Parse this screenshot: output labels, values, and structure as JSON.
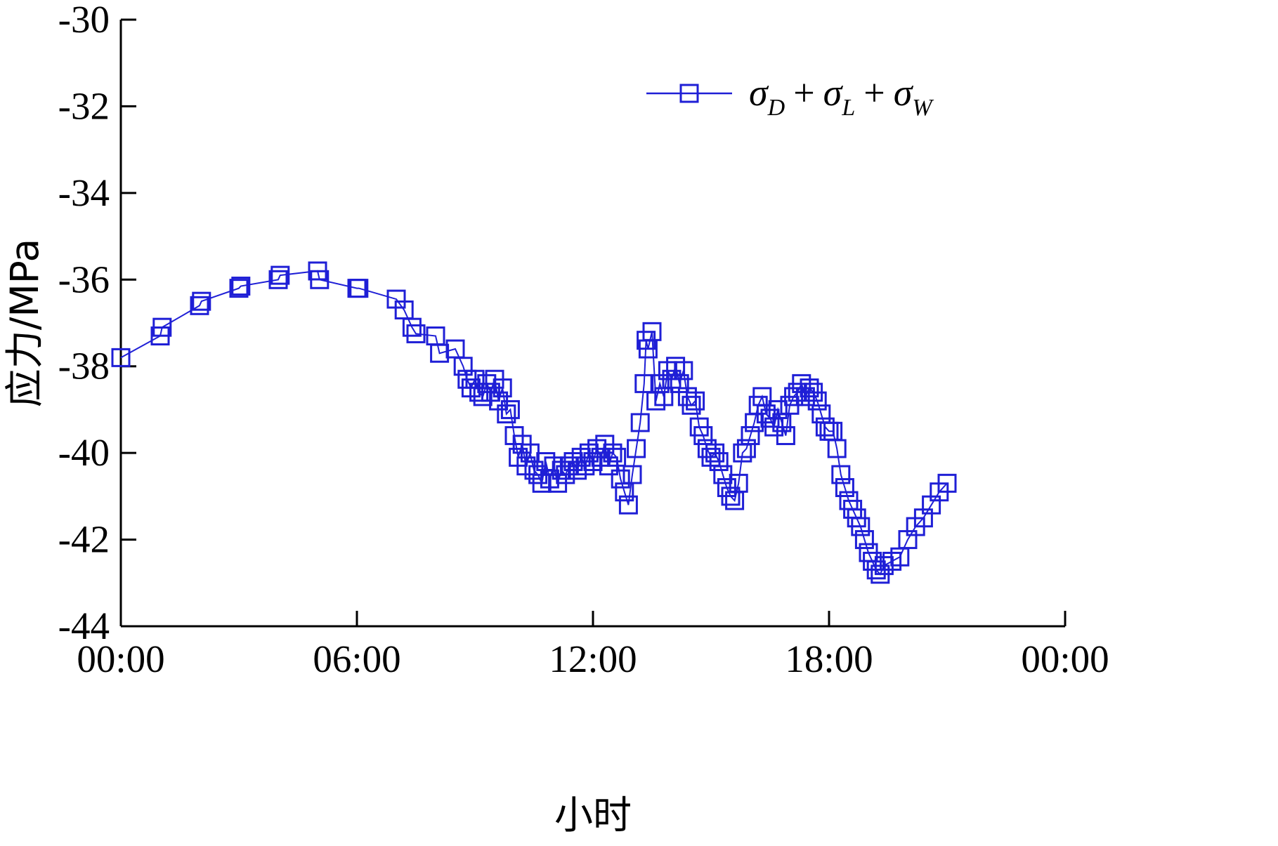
{
  "chart_data": {
    "type": "line",
    "xlabel": "小时",
    "ylabel": "应力/MPa",
    "xlim": [
      0,
      24
    ],
    "ylim": [
      -44,
      -30
    ],
    "x_ticks": [
      0,
      6,
      12,
      18,
      24
    ],
    "x_tick_labels": [
      "00:00",
      "06:00",
      "12:00",
      "18:00",
      "00:00"
    ],
    "y_ticks": [
      -30,
      -32,
      -34,
      -36,
      -38,
      -40,
      -42,
      -44
    ],
    "y_tick_labels": [
      "-30",
      "-32",
      "-34",
      "-36",
      "-38",
      "-40",
      "-42",
      "-44"
    ],
    "grid": false,
    "legend_position": "top-right",
    "legend": {
      "sym": "σ",
      "sub1": "D",
      "sub2": "L",
      "sub3": "W",
      "plus": "+"
    },
    "series": [
      {
        "color": "#1f1fd6",
        "marker": "square",
        "x": [
          0.0,
          1.0,
          1.05,
          2.0,
          2.05,
          3.0,
          3.05,
          4.0,
          4.05,
          5.0,
          5.05,
          6.0,
          6.05,
          7.0,
          7.2,
          7.4,
          7.5,
          8.0,
          8.1,
          8.5,
          8.7,
          8.8,
          8.9,
          9.0,
          9.1,
          9.2,
          9.3,
          9.4,
          9.5,
          9.6,
          9.7,
          9.8,
          9.9,
          10.0,
          10.1,
          10.2,
          10.3,
          10.4,
          10.5,
          10.6,
          10.7,
          10.8,
          10.9,
          11.0,
          11.1,
          11.2,
          11.3,
          11.4,
          11.5,
          11.6,
          11.7,
          11.8,
          11.9,
          12.0,
          12.1,
          12.2,
          12.3,
          12.4,
          12.5,
          12.6,
          12.7,
          12.8,
          12.9,
          13.0,
          13.1,
          13.2,
          13.3,
          13.35,
          13.4,
          13.5,
          13.6,
          13.7,
          13.8,
          13.9,
          14.0,
          14.1,
          14.2,
          14.3,
          14.4,
          14.5,
          14.6,
          14.7,
          14.8,
          14.9,
          15.0,
          15.1,
          15.2,
          15.3,
          15.4,
          15.5,
          15.6,
          15.7,
          15.8,
          15.9,
          16.0,
          16.1,
          16.2,
          16.3,
          16.4,
          16.5,
          16.6,
          16.7,
          16.8,
          16.9,
          17.0,
          17.1,
          17.2,
          17.3,
          17.4,
          17.5,
          17.6,
          17.7,
          17.8,
          17.9,
          18.0,
          18.1,
          18.2,
          18.3,
          18.4,
          18.5,
          18.6,
          18.7,
          18.8,
          18.9,
          19.0,
          19.1,
          19.2,
          19.3,
          19.4,
          19.6,
          19.8,
          20.0,
          20.2,
          20.4,
          20.6,
          20.8,
          21.0
        ],
        "y": [
          -37.8,
          -37.3,
          -37.1,
          -36.6,
          -36.5,
          -36.2,
          -36.15,
          -36.0,
          -35.9,
          -35.8,
          -36.0,
          -36.2,
          -36.2,
          -36.45,
          -36.7,
          -37.1,
          -37.25,
          -37.3,
          -37.7,
          -37.6,
          -38.0,
          -38.3,
          -38.5,
          -38.3,
          -38.6,
          -38.7,
          -38.4,
          -38.6,
          -38.3,
          -38.8,
          -38.5,
          -39.1,
          -39.0,
          -39.6,
          -40.1,
          -39.8,
          -40.3,
          -40.0,
          -40.4,
          -40.5,
          -40.7,
          -40.2,
          -40.6,
          -40.3,
          -40.7,
          -40.4,
          -40.5,
          -40.3,
          -40.2,
          -40.4,
          -40.1,
          -40.3,
          -40.0,
          -40.2,
          -39.9,
          -40.1,
          -39.8,
          -40.3,
          -40.0,
          -40.1,
          -40.6,
          -40.9,
          -41.2,
          -40.5,
          -39.9,
          -39.3,
          -38.4,
          -37.4,
          -37.6,
          -37.2,
          -38.8,
          -38.4,
          -38.7,
          -38.1,
          -38.3,
          -38.0,
          -38.4,
          -38.1,
          -38.7,
          -38.9,
          -38.8,
          -39.4,
          -39.6,
          -39.9,
          -40.1,
          -40.0,
          -40.2,
          -40.5,
          -40.8,
          -41.0,
          -41.1,
          -40.7,
          -40.0,
          -39.9,
          -39.6,
          -39.3,
          -38.9,
          -38.7,
          -39.1,
          -39.2,
          -39.4,
          -39.0,
          -39.3,
          -39.6,
          -38.9,
          -38.7,
          -38.6,
          -38.4,
          -38.7,
          -38.5,
          -38.6,
          -38.8,
          -39.1,
          -39.4,
          -39.5,
          -39.5,
          -39.9,
          -40.5,
          -40.8,
          -41.1,
          -41.3,
          -41.5,
          -41.7,
          -42.0,
          -42.3,
          -42.5,
          -42.7,
          -42.8,
          -42.6,
          -42.5,
          -42.4,
          -42.0,
          -41.7,
          -41.5,
          -41.2,
          -40.9,
          -40.7
        ]
      }
    ]
  }
}
